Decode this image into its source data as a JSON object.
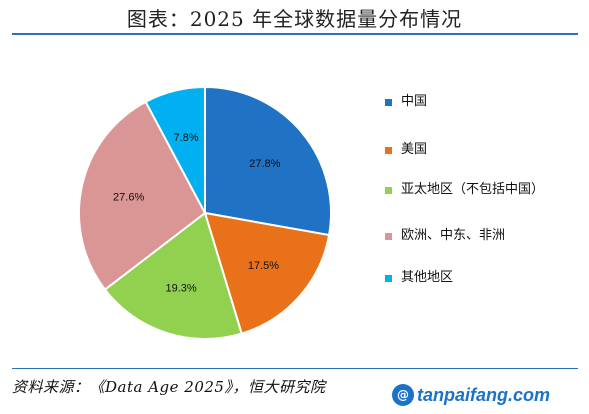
{
  "title": "图表：2025 年全球数据量分布情况",
  "source": "资料来源：《Data Age 2025》，恒大研究院",
  "watermark": {
    "text": "tanpaifang.com",
    "badge": "@",
    "colors": [
      "#1a73c8",
      "#e04b2a"
    ]
  },
  "chart_data": {
    "type": "pie",
    "title": "",
    "start_angle_deg": 0,
    "direction": "clockwise",
    "slices": [
      {
        "name": "中国",
        "value": 27.8,
        "label": "27.8%",
        "color": "#1f72c4"
      },
      {
        "name": "美国",
        "value": 17.5,
        "label": "17.5%",
        "color": "#e8711a"
      },
      {
        "name": "亚太地区（不包括中国）",
        "value": 19.3,
        "label": "19.3%",
        "color": "#92d050"
      },
      {
        "name": "欧洲、中东、非洲",
        "value": 27.6,
        "label": "27.6%",
        "color": "#d99694"
      },
      {
        "name": "其他地区",
        "value": 7.8,
        "label": "7.8%",
        "color": "#00b0f0"
      }
    ],
    "legend": {
      "position": "right",
      "items": [
        "中国",
        "美国",
        "亚太地区（不包括中国）",
        "欧洲、中东、非洲",
        "其他地区"
      ]
    }
  }
}
